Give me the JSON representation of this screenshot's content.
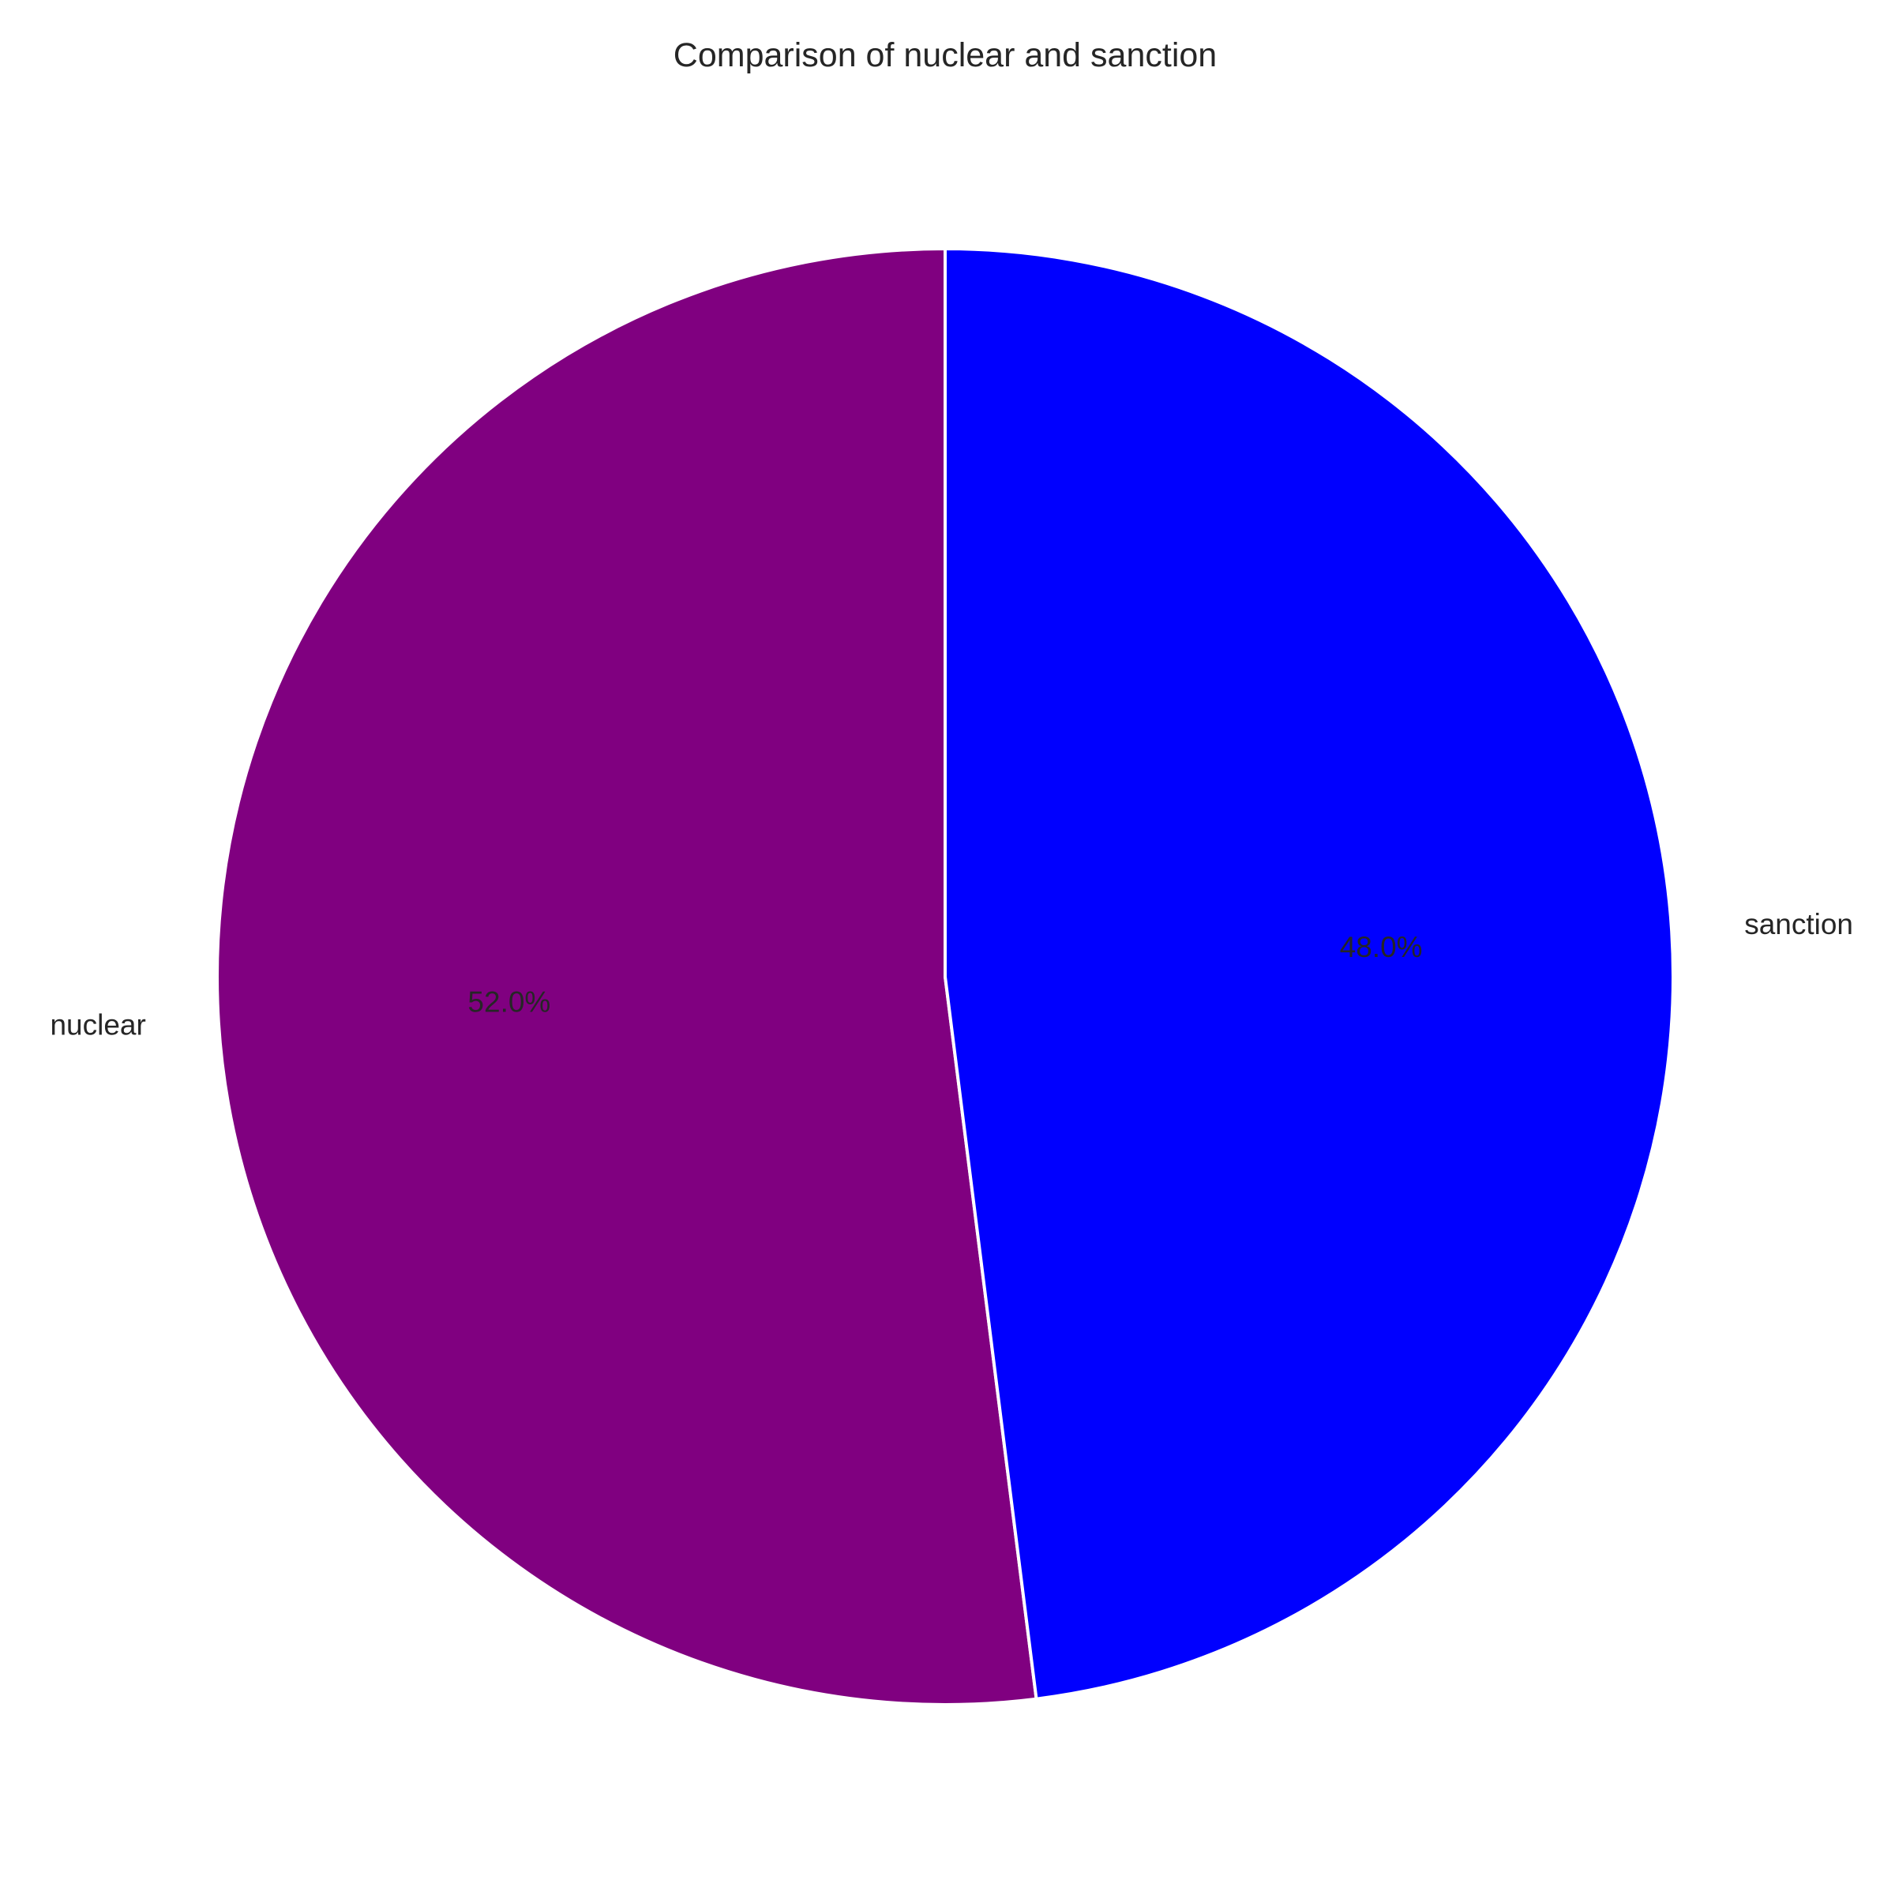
{
  "chart_data": {
    "type": "pie",
    "title": "Comparison of nuclear and sanction",
    "start_angle_deg": 90,
    "direction": "counterclockwise",
    "slices": [
      {
        "label": "nuclear",
        "value": 52.0,
        "pct_label": "52.0%",
        "color": "#800080"
      },
      {
        "label": "sanction",
        "value": 48.0,
        "pct_label": "48.0%",
        "color": "#0000ff"
      }
    ],
    "edge_color": "#ffffff",
    "legend": "none"
  }
}
